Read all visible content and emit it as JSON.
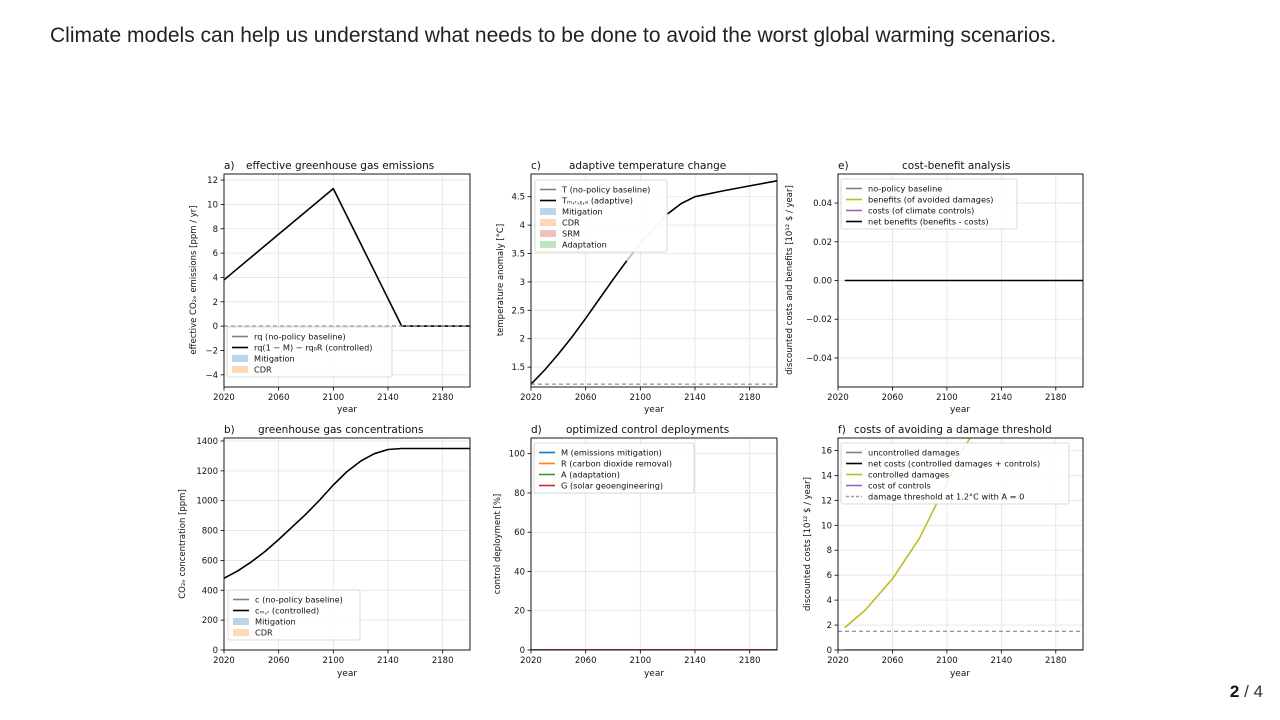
{
  "slide": {
    "title": "Climate models can help us understand what needs to be done to avoid the worst global warming scenarios.",
    "page_current": "2",
    "page_separator": "/",
    "page_total": "4"
  },
  "colors": {
    "baseline": "#808080",
    "controlled": "#000000",
    "mitigation": "#1f77b4",
    "cdr": "#ff7f0e",
    "srm": "#d62728",
    "adaptation": "#2ca02c",
    "benefits": "#bcbd22",
    "costs": "#9467bd",
    "threshold": "#999999",
    "transition": "#c8c8c8"
  },
  "chart_data": [
    {
      "id": "a",
      "type": "line",
      "panel_label": "a)",
      "title": "effective greenhouse gas emissions",
      "xlabel": "year",
      "ylabel": "effective CO₂ₑ emissions [ppm / yr]",
      "xlim": [
        2020,
        2200
      ],
      "ylim": [
        -5,
        12.5
      ],
      "xticks": [
        2020,
        2060,
        2100,
        2140,
        2180
      ],
      "yticks": [
        -4,
        -2,
        0,
        2,
        4,
        6,
        8,
        10,
        12
      ],
      "grid": true,
      "legend_position": "lower-left",
      "legend": [
        {
          "label": "rq (no-policy baseline)",
          "kind": "line",
          "color_key": "baseline"
        },
        {
          "label": "rq(1 − M) − rq₀R (controlled)",
          "kind": "line",
          "color_key": "controlled"
        },
        {
          "label": "Mitigation",
          "kind": "patch",
          "color_key": "mitigation"
        },
        {
          "label": "CDR",
          "kind": "patch",
          "color_key": "cdr"
        }
      ],
      "series": [
        {
          "name": "controlled",
          "color_key": "controlled",
          "x": [
            2020,
            2100,
            2150,
            2200
          ],
          "y": [
            3.8,
            11.3,
            0,
            0
          ]
        },
        {
          "name": "zero",
          "color_key": "threshold",
          "dashed": true,
          "x": [
            2020,
            2200
          ],
          "y": [
            0,
            0
          ]
        }
      ]
    },
    {
      "id": "b",
      "type": "line",
      "panel_label": "b)",
      "title": "greenhouse gas concentrations",
      "xlabel": "year",
      "ylabel": "CO₂ₑ concentration [ppm]",
      "xlim": [
        2020,
        2200
      ],
      "ylim": [
        0,
        1420
      ],
      "xticks": [
        2020,
        2060,
        2100,
        2140,
        2180
      ],
      "yticks": [
        0,
        200,
        400,
        600,
        800,
        1000,
        1200,
        1400
      ],
      "grid": true,
      "legend_position": "lower-left",
      "legend": [
        {
          "label": "c (no-policy baseline)",
          "kind": "line",
          "color_key": "baseline"
        },
        {
          "label": "cₘ,ᵣ (controlled)",
          "kind": "line",
          "color_key": "controlled"
        },
        {
          "label": "Mitigation",
          "kind": "patch",
          "color_key": "mitigation"
        },
        {
          "label": "CDR",
          "kind": "patch",
          "color_key": "cdr"
        }
      ],
      "series": [
        {
          "name": "controlled",
          "color_key": "controlled",
          "x": [
            2020,
            2030,
            2040,
            2050,
            2060,
            2070,
            2080,
            2090,
            2100,
            2110,
            2120,
            2130,
            2140,
            2150,
            2160,
            2200
          ],
          "y": [
            480,
            530,
            590,
            660,
            740,
            825,
            910,
            1005,
            1105,
            1195,
            1265,
            1315,
            1343,
            1350,
            1350,
            1350
          ]
        }
      ]
    },
    {
      "id": "c",
      "type": "line",
      "panel_label": "c)",
      "title": "adaptive temperature change",
      "xlabel": "year",
      "ylabel": "temperature anomaly [°C]",
      "xlim": [
        2020,
        2200
      ],
      "ylim": [
        1.15,
        4.9
      ],
      "xticks": [
        2020,
        2060,
        2100,
        2140,
        2180
      ],
      "yticks": [
        1.5,
        2.0,
        2.5,
        3.0,
        3.5,
        4.0,
        4.5
      ],
      "grid": true,
      "legend_position": "upper-left",
      "legend": [
        {
          "label": "T (no-policy baseline)",
          "kind": "line",
          "color_key": "baseline"
        },
        {
          "label": "Tₘ,ᵣ,ᵪ,ₐ (adaptive)",
          "kind": "line",
          "color_key": "controlled"
        },
        {
          "label": "Mitigation",
          "kind": "patch",
          "color_key": "mitigation"
        },
        {
          "label": "CDR",
          "kind": "patch",
          "color_key": "cdr"
        },
        {
          "label": "SRM",
          "kind": "patch",
          "color_key": "srm"
        },
        {
          "label": "Adaptation",
          "kind": "patch",
          "color_key": "adaptation"
        }
      ],
      "series": [
        {
          "name": "adaptive",
          "color_key": "controlled",
          "x": [
            2020,
            2030,
            2040,
            2050,
            2060,
            2070,
            2080,
            2090,
            2100,
            2110,
            2120,
            2130,
            2140,
            2160,
            2180,
            2200
          ],
          "y": [
            1.2,
            1.45,
            1.73,
            2.03,
            2.36,
            2.7,
            3.04,
            3.37,
            3.68,
            3.95,
            4.2,
            4.38,
            4.5,
            4.6,
            4.69,
            4.78
          ]
        },
        {
          "name": "preindustrial-ref",
          "color_key": "threshold",
          "dashed": true,
          "x": [
            2020,
            2200
          ],
          "y": [
            1.2,
            1.2
          ]
        }
      ]
    },
    {
      "id": "d",
      "type": "line",
      "panel_label": "d)",
      "title": "optimized control deployments",
      "xlabel": "year",
      "ylabel": "control deployment [%]",
      "xlim": [
        2020,
        2200
      ],
      "ylim": [
        0,
        108
      ],
      "xticks": [
        2020,
        2060,
        2100,
        2140,
        2180
      ],
      "yticks": [
        0,
        20,
        40,
        60,
        80,
        100
      ],
      "grid": true,
      "legend_position": "upper-left",
      "legend": [
        {
          "label": "M (emissions mitigation)",
          "kind": "line",
          "color_key": "mitigation"
        },
        {
          "label": "R (carbon dioxide removal)",
          "kind": "line",
          "color_key": "cdr"
        },
        {
          "label": "A (adaptation)",
          "kind": "line",
          "color_key": "adaptation"
        },
        {
          "label": "G (solar geoengineering)",
          "kind": "line",
          "color_key": "srm"
        }
      ],
      "series": [
        {
          "name": "M",
          "color_key": "mitigation",
          "x": [
            2020,
            2200
          ],
          "y": [
            0,
            0
          ]
        },
        {
          "name": "R",
          "color_key": "cdr",
          "x": [
            2020,
            2200
          ],
          "y": [
            0,
            0
          ]
        },
        {
          "name": "A",
          "color_key": "adaptation",
          "x": [
            2020,
            2200
          ],
          "y": [
            0,
            0
          ]
        },
        {
          "name": "G",
          "color_key": "srm",
          "x": [
            2020,
            2200
          ],
          "y": [
            0,
            0
          ]
        }
      ]
    },
    {
      "id": "e",
      "type": "line",
      "panel_label": "e)",
      "title": "cost-benefit analysis",
      "xlabel": "year",
      "ylabel": "discounted costs and benefits [10¹² $ / year]",
      "xlim": [
        2020,
        2200
      ],
      "ylim": [
        -0.055,
        0.055
      ],
      "xticks": [
        2020,
        2060,
        2100,
        2140,
        2180
      ],
      "yticks": [
        -0.04,
        -0.02,
        0.0,
        0.02,
        0.04
      ],
      "ytick_labels": [
        "−0.04",
        "−0.02",
        "0.00",
        "0.02",
        "0.04"
      ],
      "grid": true,
      "legend_position": "upper-left",
      "legend": [
        {
          "label": "no-policy baseline",
          "kind": "line",
          "color_key": "baseline"
        },
        {
          "label": "benefits (of avoided damages)",
          "kind": "line",
          "color_key": "benefits"
        },
        {
          "label": "costs (of climate controls)",
          "kind": "line",
          "color_key": "costs"
        },
        {
          "label": "net benefits (benefits - costs)",
          "kind": "line",
          "color_key": "controlled"
        }
      ],
      "series": [
        {
          "name": "net benefits",
          "color_key": "controlled",
          "x": [
            2025,
            2200
          ],
          "y": [
            0,
            0
          ]
        }
      ]
    },
    {
      "id": "f",
      "type": "line",
      "panel_label": "f)",
      "title": "costs of avoiding a damage threshold",
      "xlabel": "year",
      "ylabel": "discounted costs [10¹² $ / year]",
      "xlim": [
        2020,
        2200
      ],
      "ylim": [
        0,
        17
      ],
      "xticks": [
        2020,
        2060,
        2100,
        2140,
        2180
      ],
      "yticks": [
        0,
        2,
        4,
        6,
        8,
        10,
        12,
        14,
        16
      ],
      "grid": true,
      "legend_position": "upper-left",
      "legend": [
        {
          "label": "uncontrolled damages",
          "kind": "line",
          "color_key": "baseline"
        },
        {
          "label": "net costs (controlled damages + controls)",
          "kind": "line",
          "color_key": "controlled"
        },
        {
          "label": "controlled damages",
          "kind": "line",
          "color_key": "benefits"
        },
        {
          "label": "cost of controls",
          "kind": "line",
          "color_key": "costs"
        },
        {
          "label": "damage threshold at 1.2°C with A = 0",
          "kind": "dashed",
          "color_key": "threshold"
        }
      ],
      "series": [
        {
          "name": "controlled damages",
          "color_key": "benefits",
          "x": [
            2025,
            2040,
            2060,
            2080,
            2100,
            2110,
            2120
          ],
          "y": [
            1.8,
            3.2,
            5.7,
            9.0,
            13.4,
            15.8,
            17.5
          ]
        },
        {
          "name": "cost of controls",
          "color_key": "costs",
          "x": [
            2025,
            2200
          ],
          "y": [
            0,
            0
          ]
        },
        {
          "name": "damage threshold",
          "color_key": "threshold",
          "dashed": true,
          "x": [
            2020,
            2200
          ],
          "y": [
            1.5,
            1.5
          ]
        }
      ]
    }
  ]
}
